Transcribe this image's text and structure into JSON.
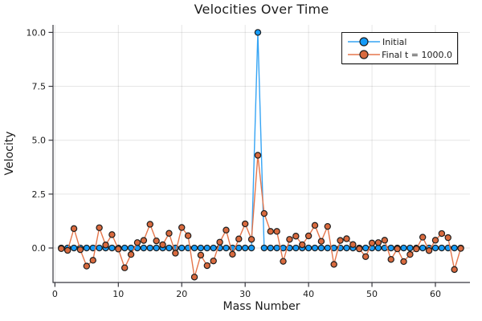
{
  "chart_data": {
    "type": "line",
    "title": "Velocities Over Time",
    "xlabel": "Mass Number",
    "ylabel": "Velocity",
    "xlim": [
      -0.3,
      65.45
    ],
    "ylim": [
      -1.6,
      10.35
    ],
    "grid": true,
    "xticks": {
      "values": [
        0,
        10,
        20,
        30,
        40,
        50,
        60
      ],
      "labels": [
        "0",
        "10",
        "20",
        "30",
        "40",
        "50",
        "60"
      ]
    },
    "yticks": {
      "values": [
        0.0,
        2.5,
        5.0,
        7.5,
        10.0
      ],
      "labels": [
        "0.0",
        "2.5",
        "5.0",
        "7.5",
        "10.0"
      ]
    },
    "legend": {
      "position": "top-right"
    },
    "marker_stroke_color": "#1e1e1e",
    "x": [
      1,
      2,
      3,
      4,
      5,
      6,
      7,
      8,
      9,
      10,
      11,
      12,
      13,
      14,
      15,
      16,
      17,
      18,
      19,
      20,
      21,
      22,
      23,
      24,
      25,
      26,
      27,
      28,
      29,
      30,
      31,
      32,
      33,
      34,
      35,
      36,
      37,
      38,
      39,
      40,
      41,
      42,
      43,
      44,
      45,
      46,
      47,
      48,
      49,
      50,
      51,
      52,
      53,
      54,
      55,
      56,
      57,
      58,
      59,
      60,
      61,
      62,
      63,
      64
    ],
    "series": [
      {
        "name": "Initial",
        "marker_color": "#149bf9",
        "line_color": "#35a4f4",
        "values": [
          0,
          0,
          0,
          0,
          0,
          0,
          0,
          0,
          0,
          0,
          0,
          0,
          0,
          0,
          0,
          0,
          0,
          0,
          0,
          0,
          0,
          0,
          0,
          0,
          0,
          0,
          0,
          0,
          0,
          0,
          0,
          10.0,
          0,
          0,
          0,
          0,
          0,
          0,
          0,
          0,
          0,
          0,
          0,
          0,
          0,
          0,
          0,
          0,
          0,
          0,
          0,
          0,
          0,
          0,
          0,
          0,
          0,
          0,
          0,
          0,
          0,
          0,
          0,
          0
        ]
      },
      {
        "name": "Final t = 1000.0",
        "marker_color": "#d96a3e",
        "line_color": "#e5764b",
        "values": [
          -0.03,
          -0.11,
          0.9,
          -0.08,
          -0.84,
          -0.57,
          0.94,
          0.14,
          0.62,
          -0.05,
          -0.92,
          -0.3,
          0.25,
          0.35,
          1.1,
          0.33,
          0.15,
          0.68,
          -0.24,
          0.95,
          0.57,
          -1.35,
          -0.33,
          -0.82,
          -0.6,
          0.27,
          0.83,
          -0.29,
          0.42,
          1.12,
          0.4,
          4.3,
          1.6,
          0.77,
          0.77,
          -0.62,
          0.4,
          0.55,
          0.15,
          0.56,
          1.05,
          0.31,
          1.0,
          -0.76,
          0.35,
          0.43,
          0.16,
          -0.04,
          -0.4,
          0.23,
          0.25,
          0.36,
          -0.53,
          -0.04,
          -0.63,
          -0.3,
          -0.04,
          0.5,
          -0.12,
          0.36,
          0.67,
          0.48,
          -1.0,
          -0.02
        ]
      }
    ]
  }
}
